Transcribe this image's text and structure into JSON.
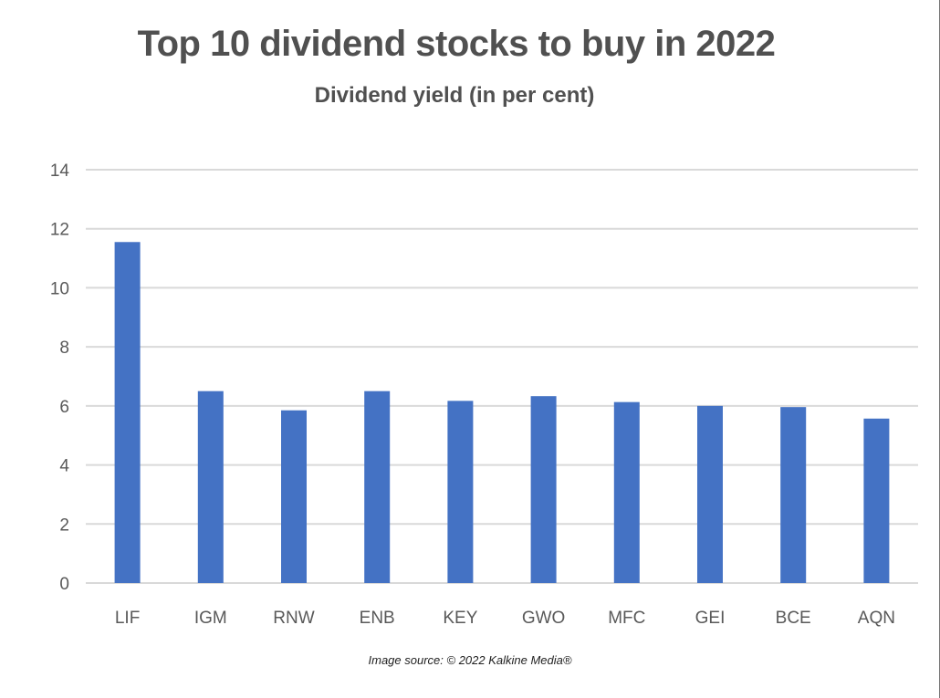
{
  "chart_data": {
    "type": "bar",
    "title": "Top 10 dividend stocks to buy in 2022",
    "subtitle": "Dividend yield (in per cent)",
    "categories": [
      "LIF",
      "IGM",
      "RNW",
      "ENB",
      "KEY",
      "GWO",
      "MFC",
      "GEI",
      "BCE",
      "AQN"
    ],
    "values": [
      11.55,
      6.5,
      5.85,
      6.5,
      6.17,
      6.33,
      6.13,
      6.0,
      5.96,
      5.57
    ],
    "ylim": [
      0,
      14
    ],
    "yticks": [
      0,
      2,
      4,
      6,
      8,
      10,
      12,
      14
    ],
    "xlabel": "",
    "ylabel": "",
    "grid": true,
    "legend": "none",
    "bar_color": "#4472C4",
    "grid_color": "#D9D9D9",
    "text_color": "#595959"
  },
  "source_text": "Image source: © 2022 Kalkine Media®"
}
